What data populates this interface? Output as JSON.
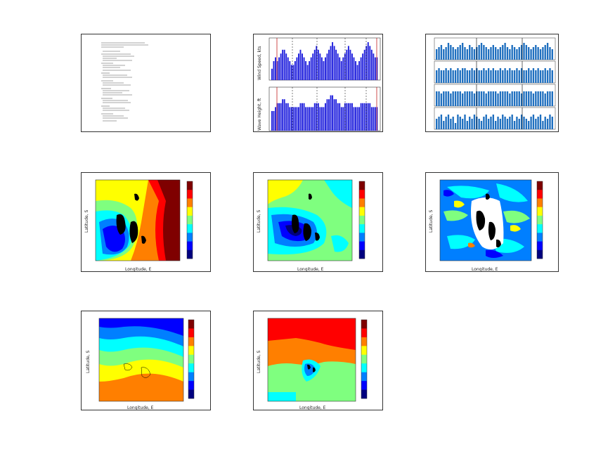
{
  "chart_data": [
    {
      "type": "table",
      "panel": "text-summary",
      "lines_visible": 0
    },
    {
      "type": "bar",
      "panel": "wind-wave-bars",
      "series": [
        {
          "name": "Wind Speed",
          "values": [
            3,
            5,
            6,
            5,
            6,
            7,
            8,
            8,
            7,
            6,
            5,
            4,
            4,
            5,
            6,
            7,
            8,
            7,
            6,
            5,
            4,
            5,
            6,
            7,
            8,
            9,
            8,
            7,
            6,
            5,
            6,
            7,
            8,
            9,
            10,
            9,
            8,
            7,
            6,
            5,
            6,
            7,
            8,
            9,
            8,
            7,
            6,
            5,
            4,
            5,
            6,
            7,
            8,
            9,
            10,
            9,
            8,
            7,
            6,
            6
          ]
        },
        {
          "name": "Wave Height",
          "values": [
            5,
            5,
            6,
            7,
            7,
            7,
            8,
            8,
            7,
            7,
            6,
            6,
            6,
            6,
            6,
            6,
            7,
            7,
            7,
            6,
            6,
            6,
            6,
            6,
            7,
            7,
            7,
            6,
            6,
            6,
            7,
            8,
            8,
            9,
            9,
            8,
            8,
            7,
            7,
            6,
            6,
            7,
            7,
            7,
            7,
            7,
            6,
            6,
            6,
            6,
            7,
            7,
            7,
            7,
            7,
            7,
            6,
            6,
            6,
            6
          ]
        }
      ],
      "ylabels": [
        "Wind Speed, kts",
        "Wave Height, ft"
      ]
    },
    {
      "type": "bar",
      "panel": "four-strip-bars",
      "series": [
        {
          "values": [
            5,
            6,
            7,
            5,
            6,
            8,
            7,
            6,
            5,
            6,
            7,
            8,
            6,
            5,
            7,
            6,
            5,
            6,
            7,
            8,
            7,
            6,
            5,
            6,
            7,
            6,
            5,
            6,
            7,
            8,
            6,
            5,
            7,
            6,
            5,
            6,
            7,
            8,
            7,
            6,
            5,
            6,
            7,
            6,
            5,
            6,
            7,
            8,
            6,
            5
          ]
        },
        {
          "values": [
            6,
            7,
            6,
            6,
            7,
            6,
            7,
            6,
            6,
            7,
            6,
            7,
            7,
            6,
            6,
            7,
            6,
            7,
            6,
            6,
            7,
            6,
            7,
            6,
            7,
            6,
            6,
            7,
            6,
            7,
            6,
            7,
            6,
            6,
            7,
            6,
            7,
            6,
            6,
            7,
            6,
            7,
            6,
            7,
            6,
            6,
            7,
            6,
            7,
            6
          ]
        },
        {
          "values": [
            7,
            7,
            6,
            7,
            7,
            7,
            6,
            7,
            7,
            7,
            7,
            6,
            7,
            7,
            7,
            7,
            6,
            7,
            7,
            7,
            7,
            6,
            7,
            7,
            7,
            7,
            6,
            7,
            7,
            7,
            7,
            6,
            7,
            7,
            7,
            7,
            6,
            7,
            7,
            7,
            7,
            6,
            7,
            7,
            7,
            7,
            6,
            7,
            7,
            7
          ]
        },
        {
          "values": [
            5,
            6,
            7,
            4,
            6,
            7,
            5,
            6,
            3,
            7,
            6,
            5,
            7,
            4,
            6,
            5,
            7,
            6,
            5,
            4,
            6,
            7,
            5,
            6,
            7,
            4,
            6,
            5,
            7,
            6,
            5,
            6,
            7,
            4,
            6,
            5,
            7,
            6,
            5,
            4,
            6,
            7,
            5,
            6,
            7,
            4,
            6,
            5,
            7,
            6
          ]
        }
      ]
    },
    {
      "type": "heatmap",
      "panel": "contour-1",
      "xlabel": "Longitude, E",
      "ylabel": "Latitude, S"
    },
    {
      "type": "heatmap",
      "panel": "contour-2",
      "xlabel": "Longitude, E",
      "ylabel": "Latitude, S"
    },
    {
      "type": "heatmap",
      "panel": "contour-3",
      "xlabel": "Longitude, E",
      "ylabel": "Latitude, S"
    },
    {
      "type": "heatmap",
      "panel": "contour-4",
      "xlabel": "Longitude, E",
      "ylabel": "Latitude, S"
    },
    {
      "type": "heatmap",
      "panel": "contour-5",
      "xlabel": "Longitude, E",
      "ylabel": "Latitude, S"
    }
  ],
  "colors": {
    "jet": [
      "#00007f",
      "#0000ff",
      "#007fff",
      "#00ffff",
      "#7fff7f",
      "#ffff00",
      "#ff7f00",
      "#ff0000",
      "#7f0000"
    ]
  }
}
